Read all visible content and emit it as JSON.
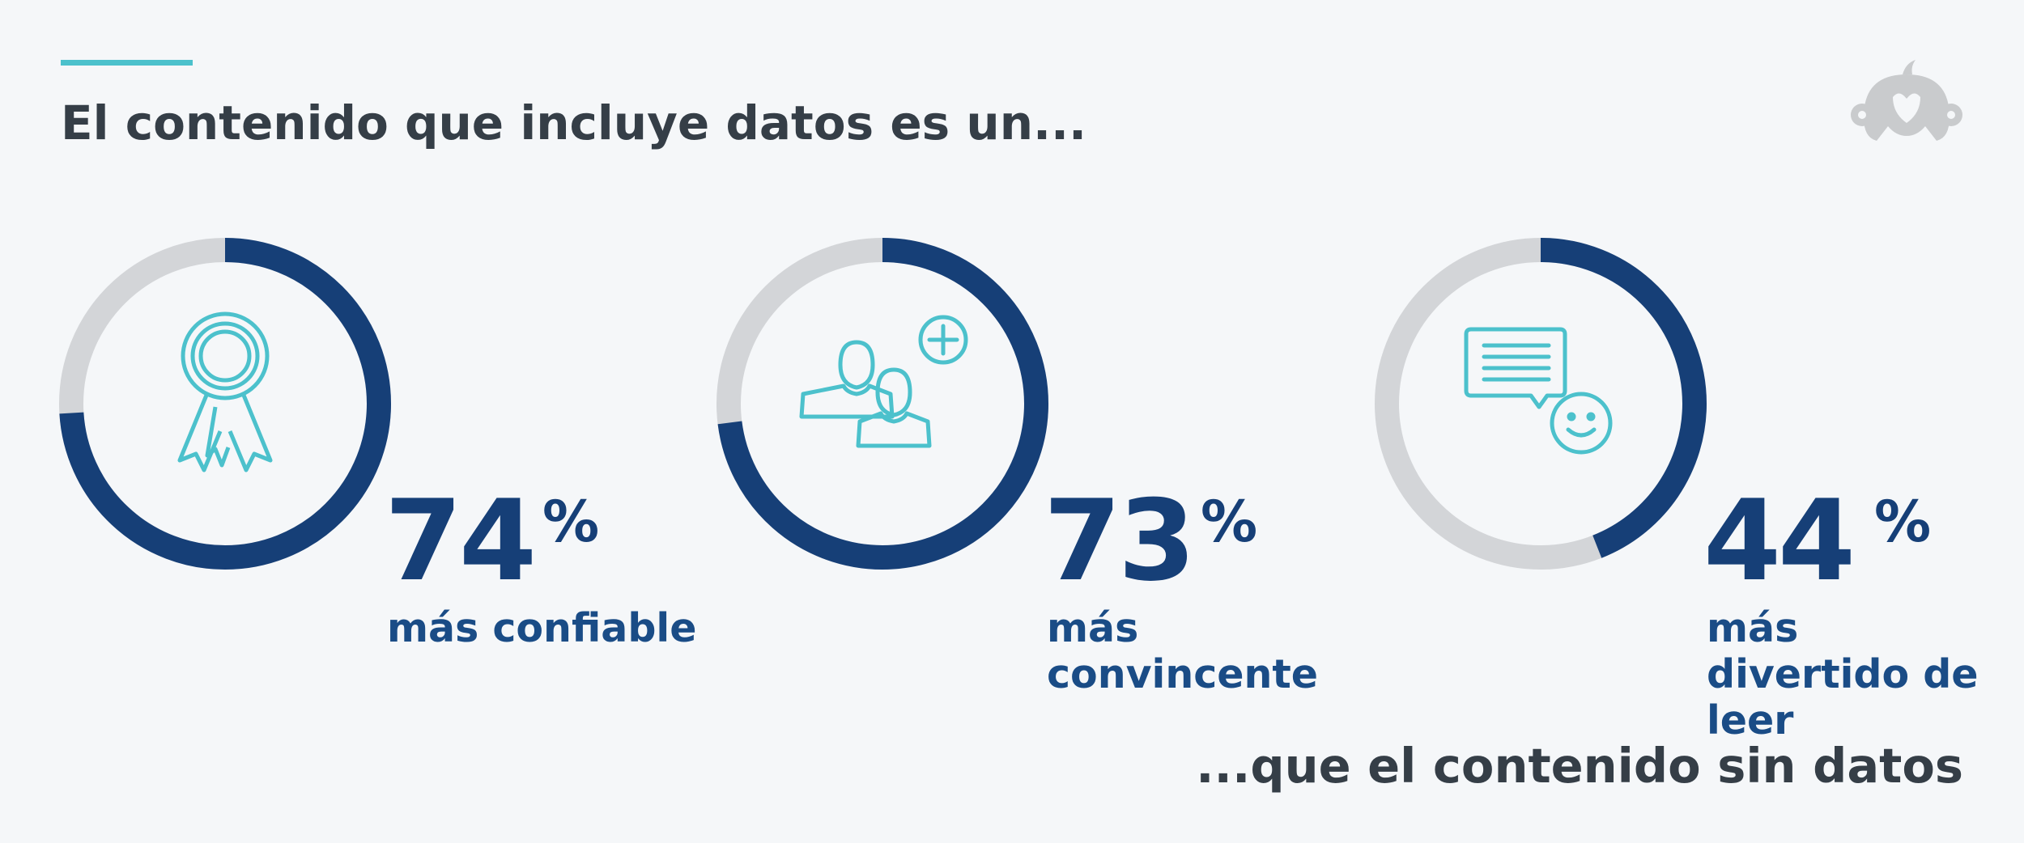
{
  "title": "El contenido que incluye datos es un...",
  "footer": "...que el contenido sin datos",
  "colors": {
    "accent": "#4cc1cc",
    "value_arc": "#163f77",
    "remainder_arc": "#d3d5d8",
    "icon": "#4cc1cc",
    "logo": "#c9cbcd"
  },
  "logo_icon": "monkey-logo-icon",
  "chart_data": [
    {
      "type": "pie",
      "value": 74,
      "max": 100,
      "value_label": "74",
      "unit": "%",
      "label": "más confiable",
      "icon": "award-ribbon-icon"
    },
    {
      "type": "pie",
      "value": 73,
      "max": 100,
      "value_label": "73",
      "unit": "%",
      "label": "más convincente",
      "icon": "add-people-icon"
    },
    {
      "type": "pie",
      "value": 44,
      "max": 100,
      "value_label": "44",
      "unit": "%",
      "label": "más divertido de leer",
      "icon": "chat-smile-icon"
    }
  ]
}
